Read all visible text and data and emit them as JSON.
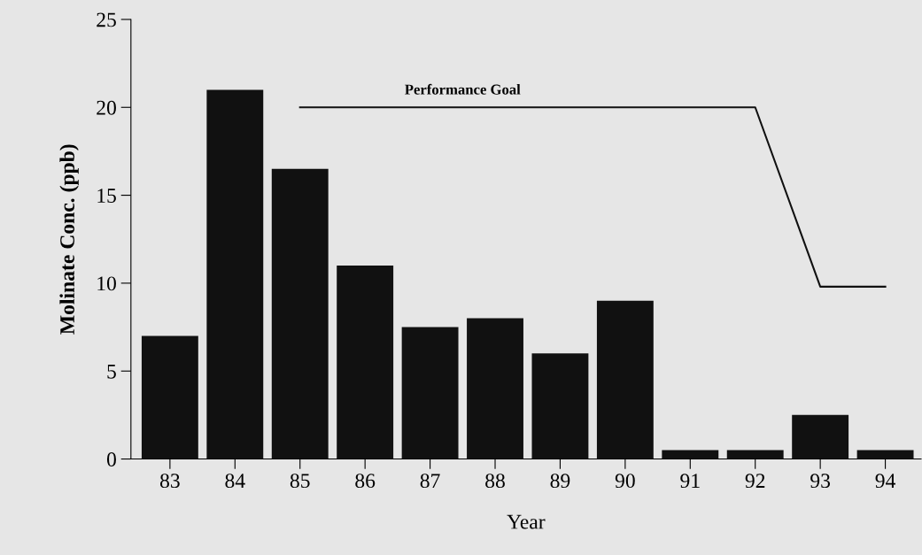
{
  "chart_data": {
    "type": "bar",
    "xlabel": "Year",
    "ylabel": "Molinate Conc. (ppb)",
    "categories": [
      "83",
      "84",
      "85",
      "86",
      "87",
      "88",
      "89",
      "90",
      "91",
      "92",
      "93",
      "94"
    ],
    "series": [
      {
        "color": "#111111",
        "values": [
          7,
          21,
          16.5,
          11,
          7.5,
          8,
          6,
          9,
          0.5,
          0.5,
          2.5,
          0.5
        ]
      },
      {
        "type": "line",
        "color": "#111111",
        "values": [
          null,
          null,
          20,
          20,
          20,
          20,
          20,
          20,
          20,
          20,
          9.8,
          9.8
        ]
      }
    ],
    "annotations": [
      "Performance Goal"
    ],
    "ylim": [
      0,
      25
    ],
    "yticks": [
      0,
      5,
      10,
      15,
      20,
      25
    ],
    "grid": false,
    "legend": false
  }
}
